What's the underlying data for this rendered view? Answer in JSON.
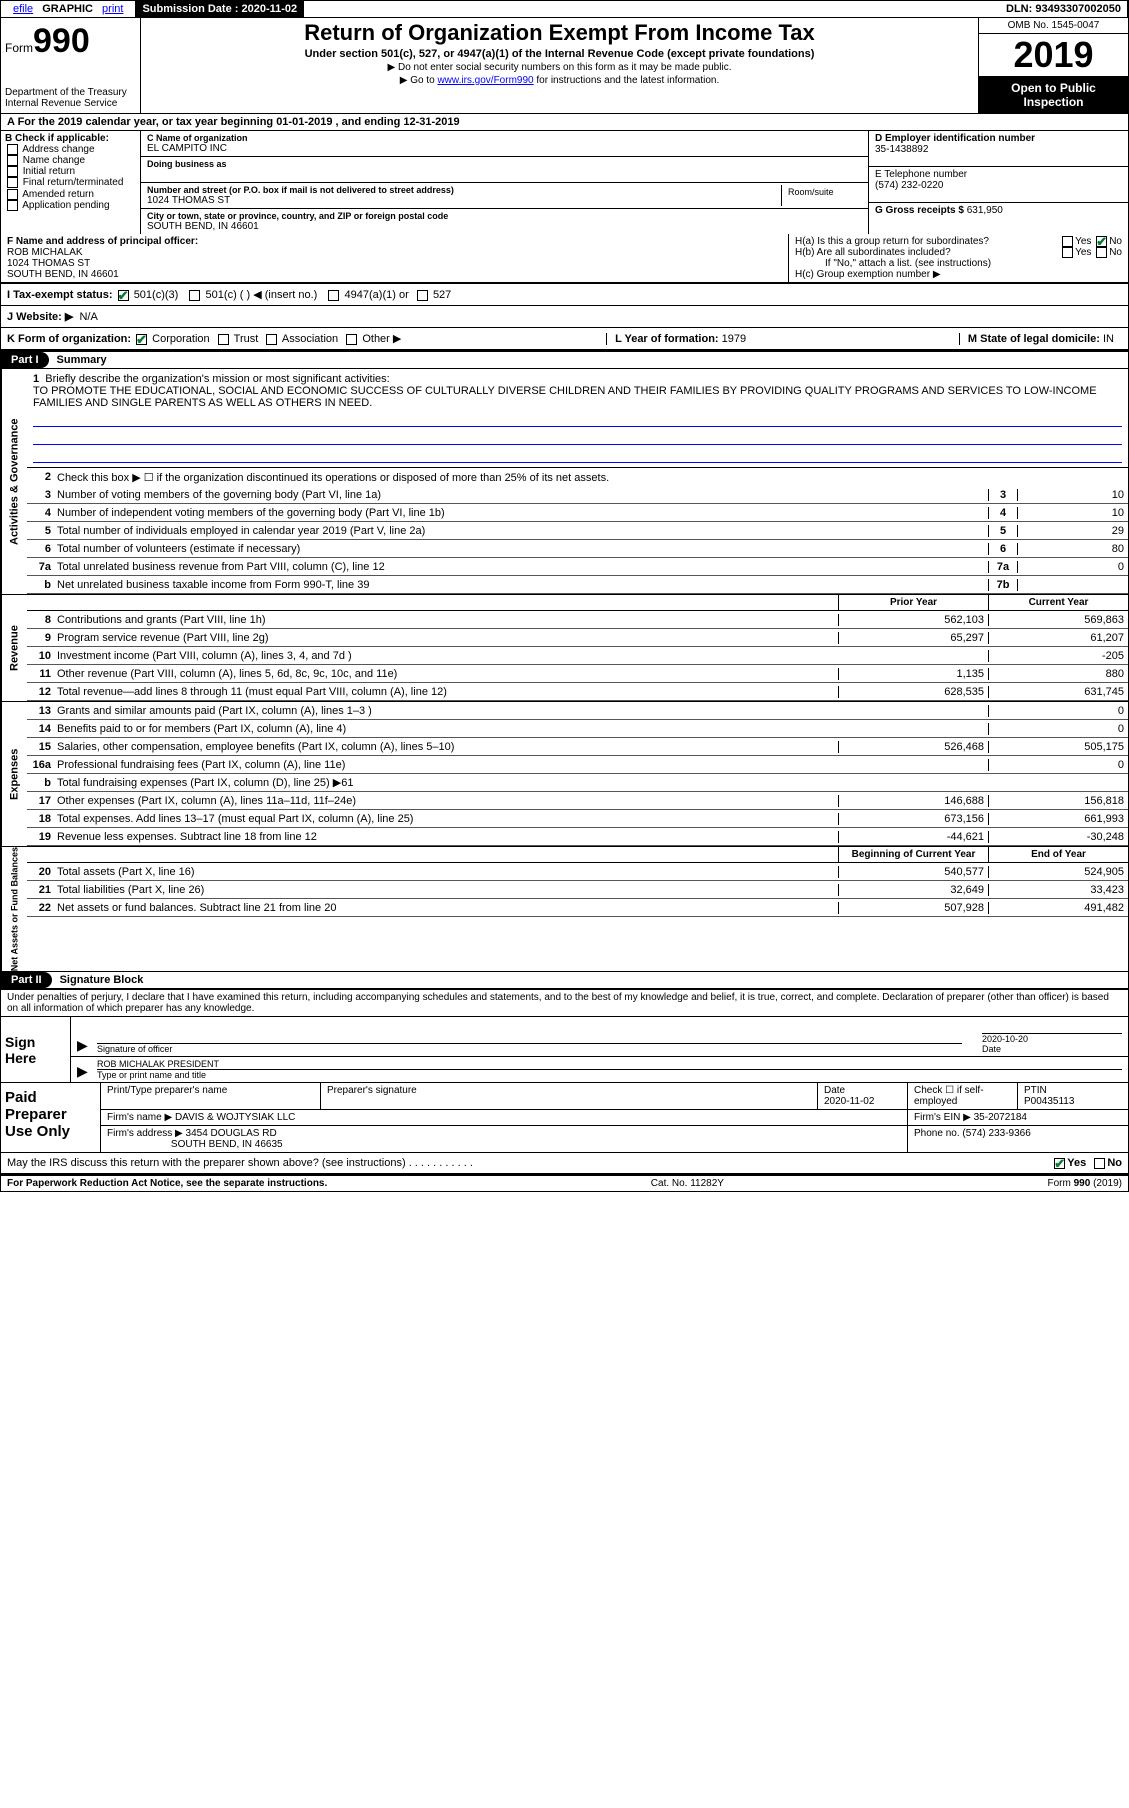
{
  "top": {
    "efile": "efile",
    "graphic": "GRAPHIC",
    "print": "print",
    "sub_label": "Submission Date :",
    "sub_date": "2020-11-02",
    "dln": "DLN: 93493307002050"
  },
  "header": {
    "form_word": "Form",
    "form_no": "990",
    "dept": "Department of the Treasury\nInternal Revenue Service",
    "title": "Return of Organization Exempt From Income Tax",
    "subtitle": "Under section 501(c), 527, or 4947(a)(1) of the Internal Revenue Code (except private foundations)",
    "instr1": "▶ Do not enter social security numbers on this form as it may be made public.",
    "instr2_pre": "▶ Go to ",
    "instr2_link": "www.irs.gov/Form990",
    "instr2_post": " for instructions and the latest information.",
    "omb": "OMB No. 1545-0047",
    "year": "2019",
    "open_public": "Open to Public Inspection"
  },
  "row_a": "A For the 2019 calendar year, or tax year beginning 01-01-2019   , and ending 12-31-2019",
  "block_b": {
    "label": "B Check if applicable:",
    "opts": [
      "Address change",
      "Name change",
      "Initial return",
      "Final return/terminated",
      "Amended return",
      "Application pending"
    ]
  },
  "block_c": {
    "name_label": "C Name of organization",
    "name": "EL CAMPITO INC",
    "dba_label": "Doing business as",
    "dba": "",
    "addr_label": "Number and street (or P.O. box if mail is not delivered to street address)",
    "addr": "1024 THOMAS ST",
    "room_label": "Room/suite",
    "city_label": "City or town, state or province, country, and ZIP or foreign postal code",
    "city": "SOUTH BEND, IN  46601"
  },
  "block_d": {
    "label": "D Employer identification number",
    "value": "35-1438892"
  },
  "block_e": {
    "label": "E Telephone number",
    "value": "(574) 232-0220"
  },
  "block_g": {
    "label": "G Gross receipts $",
    "value": "631,950"
  },
  "block_f": {
    "label": "F Name and address of principal officer:",
    "name": "ROB MICHALAK",
    "addr1": "1024 THOMAS ST",
    "addr2": "SOUTH BEND, IN  46601"
  },
  "block_h": {
    "a_label": "H(a)  Is this a group return for subordinates?",
    "b_label": "H(b)  Are all subordinates included?",
    "b_note": "If \"No,\" attach a list. (see instructions)",
    "c_label": "H(c)  Group exemption number ▶",
    "yes": "Yes",
    "no": "No"
  },
  "row_i": {
    "label": "I  Tax-exempt status:",
    "o501c3": "501(c)(3)",
    "o501c": "501(c) (   ) ◀ (insert no.)",
    "o4947": "4947(a)(1) or",
    "o527": "527"
  },
  "row_j": {
    "label": "J   Website: ▶",
    "value": "N/A"
  },
  "row_k": {
    "label": "K Form of organization:",
    "corp": "Corporation",
    "trust": "Trust",
    "assoc": "Association",
    "other": "Other ▶"
  },
  "row_l": {
    "label": "L Year of formation:",
    "value": "1979"
  },
  "row_m": {
    "label": "M State of legal domicile:",
    "value": "IN"
  },
  "part1": {
    "part": "Part I",
    "title": "Summary",
    "side_ag": "Activities & Governance",
    "side_rev": "Revenue",
    "side_exp": "Expenses",
    "side_na": "Net Assets or Fund Balances",
    "q1_label": "Briefly describe the organization's mission or most significant activities:",
    "q1_text": "TO PROMOTE THE EDUCATIONAL, SOCIAL AND ECONOMIC SUCCESS OF CULTURALLY DIVERSE CHILDREN AND THEIR FAMILIES BY PROVIDING QUALITY PROGRAMS AND SERVICES TO LOW-INCOME FAMILIES AND SINGLE PARENTS AS WELL AS OTHERS IN NEED.",
    "q2": "Check this box ▶ ☐ if the organization discontinued its operations or disposed of more than 25% of its net assets.",
    "lines_ag": [
      {
        "n": "3",
        "t": "Number of voting members of the governing body (Part VI, line 1a)",
        "b": "3",
        "v": "10"
      },
      {
        "n": "4",
        "t": "Number of independent voting members of the governing body (Part VI, line 1b)",
        "b": "4",
        "v": "10"
      },
      {
        "n": "5",
        "t": "Total number of individuals employed in calendar year 2019 (Part V, line 2a)",
        "b": "5",
        "v": "29"
      },
      {
        "n": "6",
        "t": "Total number of volunteers (estimate if necessary)",
        "b": "6",
        "v": "80"
      },
      {
        "n": "7a",
        "t": "Total unrelated business revenue from Part VIII, column (C), line 12",
        "b": "7a",
        "v": "0"
      },
      {
        "n": "b",
        "t": "Net unrelated business taxable income from Form 990-T, line 39",
        "b": "7b",
        "v": ""
      }
    ],
    "col_prior": "Prior Year",
    "col_curr": "Current Year",
    "lines_rev": [
      {
        "n": "8",
        "t": "Contributions and grants (Part VIII, line 1h)",
        "p": "562,103",
        "c": "569,863"
      },
      {
        "n": "9",
        "t": "Program service revenue (Part VIII, line 2g)",
        "p": "65,297",
        "c": "61,207"
      },
      {
        "n": "10",
        "t": "Investment income (Part VIII, column (A), lines 3, 4, and 7d )",
        "p": "",
        "c": "-205"
      },
      {
        "n": "11",
        "t": "Other revenue (Part VIII, column (A), lines 5, 6d, 8c, 9c, 10c, and 11e)",
        "p": "1,135",
        "c": "880"
      },
      {
        "n": "12",
        "t": "Total revenue—add lines 8 through 11 (must equal Part VIII, column (A), line 12)",
        "p": "628,535",
        "c": "631,745"
      }
    ],
    "lines_exp": [
      {
        "n": "13",
        "t": "Grants and similar amounts paid (Part IX, column (A), lines 1–3 )",
        "p": "",
        "c": "0"
      },
      {
        "n": "14",
        "t": "Benefits paid to or for members (Part IX, column (A), line 4)",
        "p": "",
        "c": "0"
      },
      {
        "n": "15",
        "t": "Salaries, other compensation, employee benefits (Part IX, column (A), lines 5–10)",
        "p": "526,468",
        "c": "505,175"
      },
      {
        "n": "16a",
        "t": "Professional fundraising fees (Part IX, column (A), line 11e)",
        "p": "",
        "c": "0"
      },
      {
        "n": "b",
        "t": "Total fundraising expenses (Part IX, column (D), line 25) ▶61",
        "p": "grey",
        "c": "grey"
      },
      {
        "n": "17",
        "t": "Other expenses (Part IX, column (A), lines 11a–11d, 11f–24e)",
        "p": "146,688",
        "c": "156,818"
      },
      {
        "n": "18",
        "t": "Total expenses. Add lines 13–17 (must equal Part IX, column (A), line 25)",
        "p": "673,156",
        "c": "661,993"
      },
      {
        "n": "19",
        "t": "Revenue less expenses. Subtract line 18 from line 12",
        "p": "-44,621",
        "c": "-30,248"
      }
    ],
    "col_begin": "Beginning of Current Year",
    "col_end": "End of Year",
    "lines_na": [
      {
        "n": "20",
        "t": "Total assets (Part X, line 16)",
        "p": "540,577",
        "c": "524,905"
      },
      {
        "n": "21",
        "t": "Total liabilities (Part X, line 26)",
        "p": "32,649",
        "c": "33,423"
      },
      {
        "n": "22",
        "t": "Net assets or fund balances. Subtract line 21 from line 20",
        "p": "507,928",
        "c": "491,482"
      }
    ]
  },
  "part2": {
    "part": "Part II",
    "title": "Signature Block",
    "decl": "Under penalties of perjury, I declare that I have examined this return, including accompanying schedules and statements, and to the best of my knowledge and belief, it is true, correct, and complete. Declaration of preparer (other than officer) is based on all information of which preparer has any knowledge.",
    "sign_here": "Sign Here",
    "sig_officer": "Signature of officer",
    "date_label": "Date",
    "sig_date": "2020-10-20",
    "officer_name": "ROB MICHALAK  PRESIDENT",
    "type_name": "Type or print name and title",
    "paid": "Paid Preparer Use Only",
    "pp_name_label": "Print/Type preparer's name",
    "pp_sig_label": "Preparer's signature",
    "pp_date_label": "Date",
    "pp_date": "2020-11-02",
    "pp_check_label": "Check ☐ if self-employed",
    "ptin_label": "PTIN",
    "ptin": "P00435113",
    "firm_name_label": "Firm's name   ▶",
    "firm_name": "DAVIS & WOJTYSIAK LLC",
    "firm_ein_label": "Firm's EIN ▶",
    "firm_ein": "35-2072184",
    "firm_addr_label": "Firm's address ▶",
    "firm_addr1": "3454 DOUGLAS RD",
    "firm_addr2": "SOUTH BEND, IN  46635",
    "firm_phone_label": "Phone no.",
    "firm_phone": "(574) 233-9366",
    "irs_discuss": "May the IRS discuss this return with the preparer shown above? (see instructions)",
    "yes": "Yes",
    "no": "No"
  },
  "footer": {
    "pra": "For Paperwork Reduction Act Notice, see the separate instructions.",
    "cat": "Cat. No. 11282Y",
    "form": "Form 990 (2019)"
  }
}
